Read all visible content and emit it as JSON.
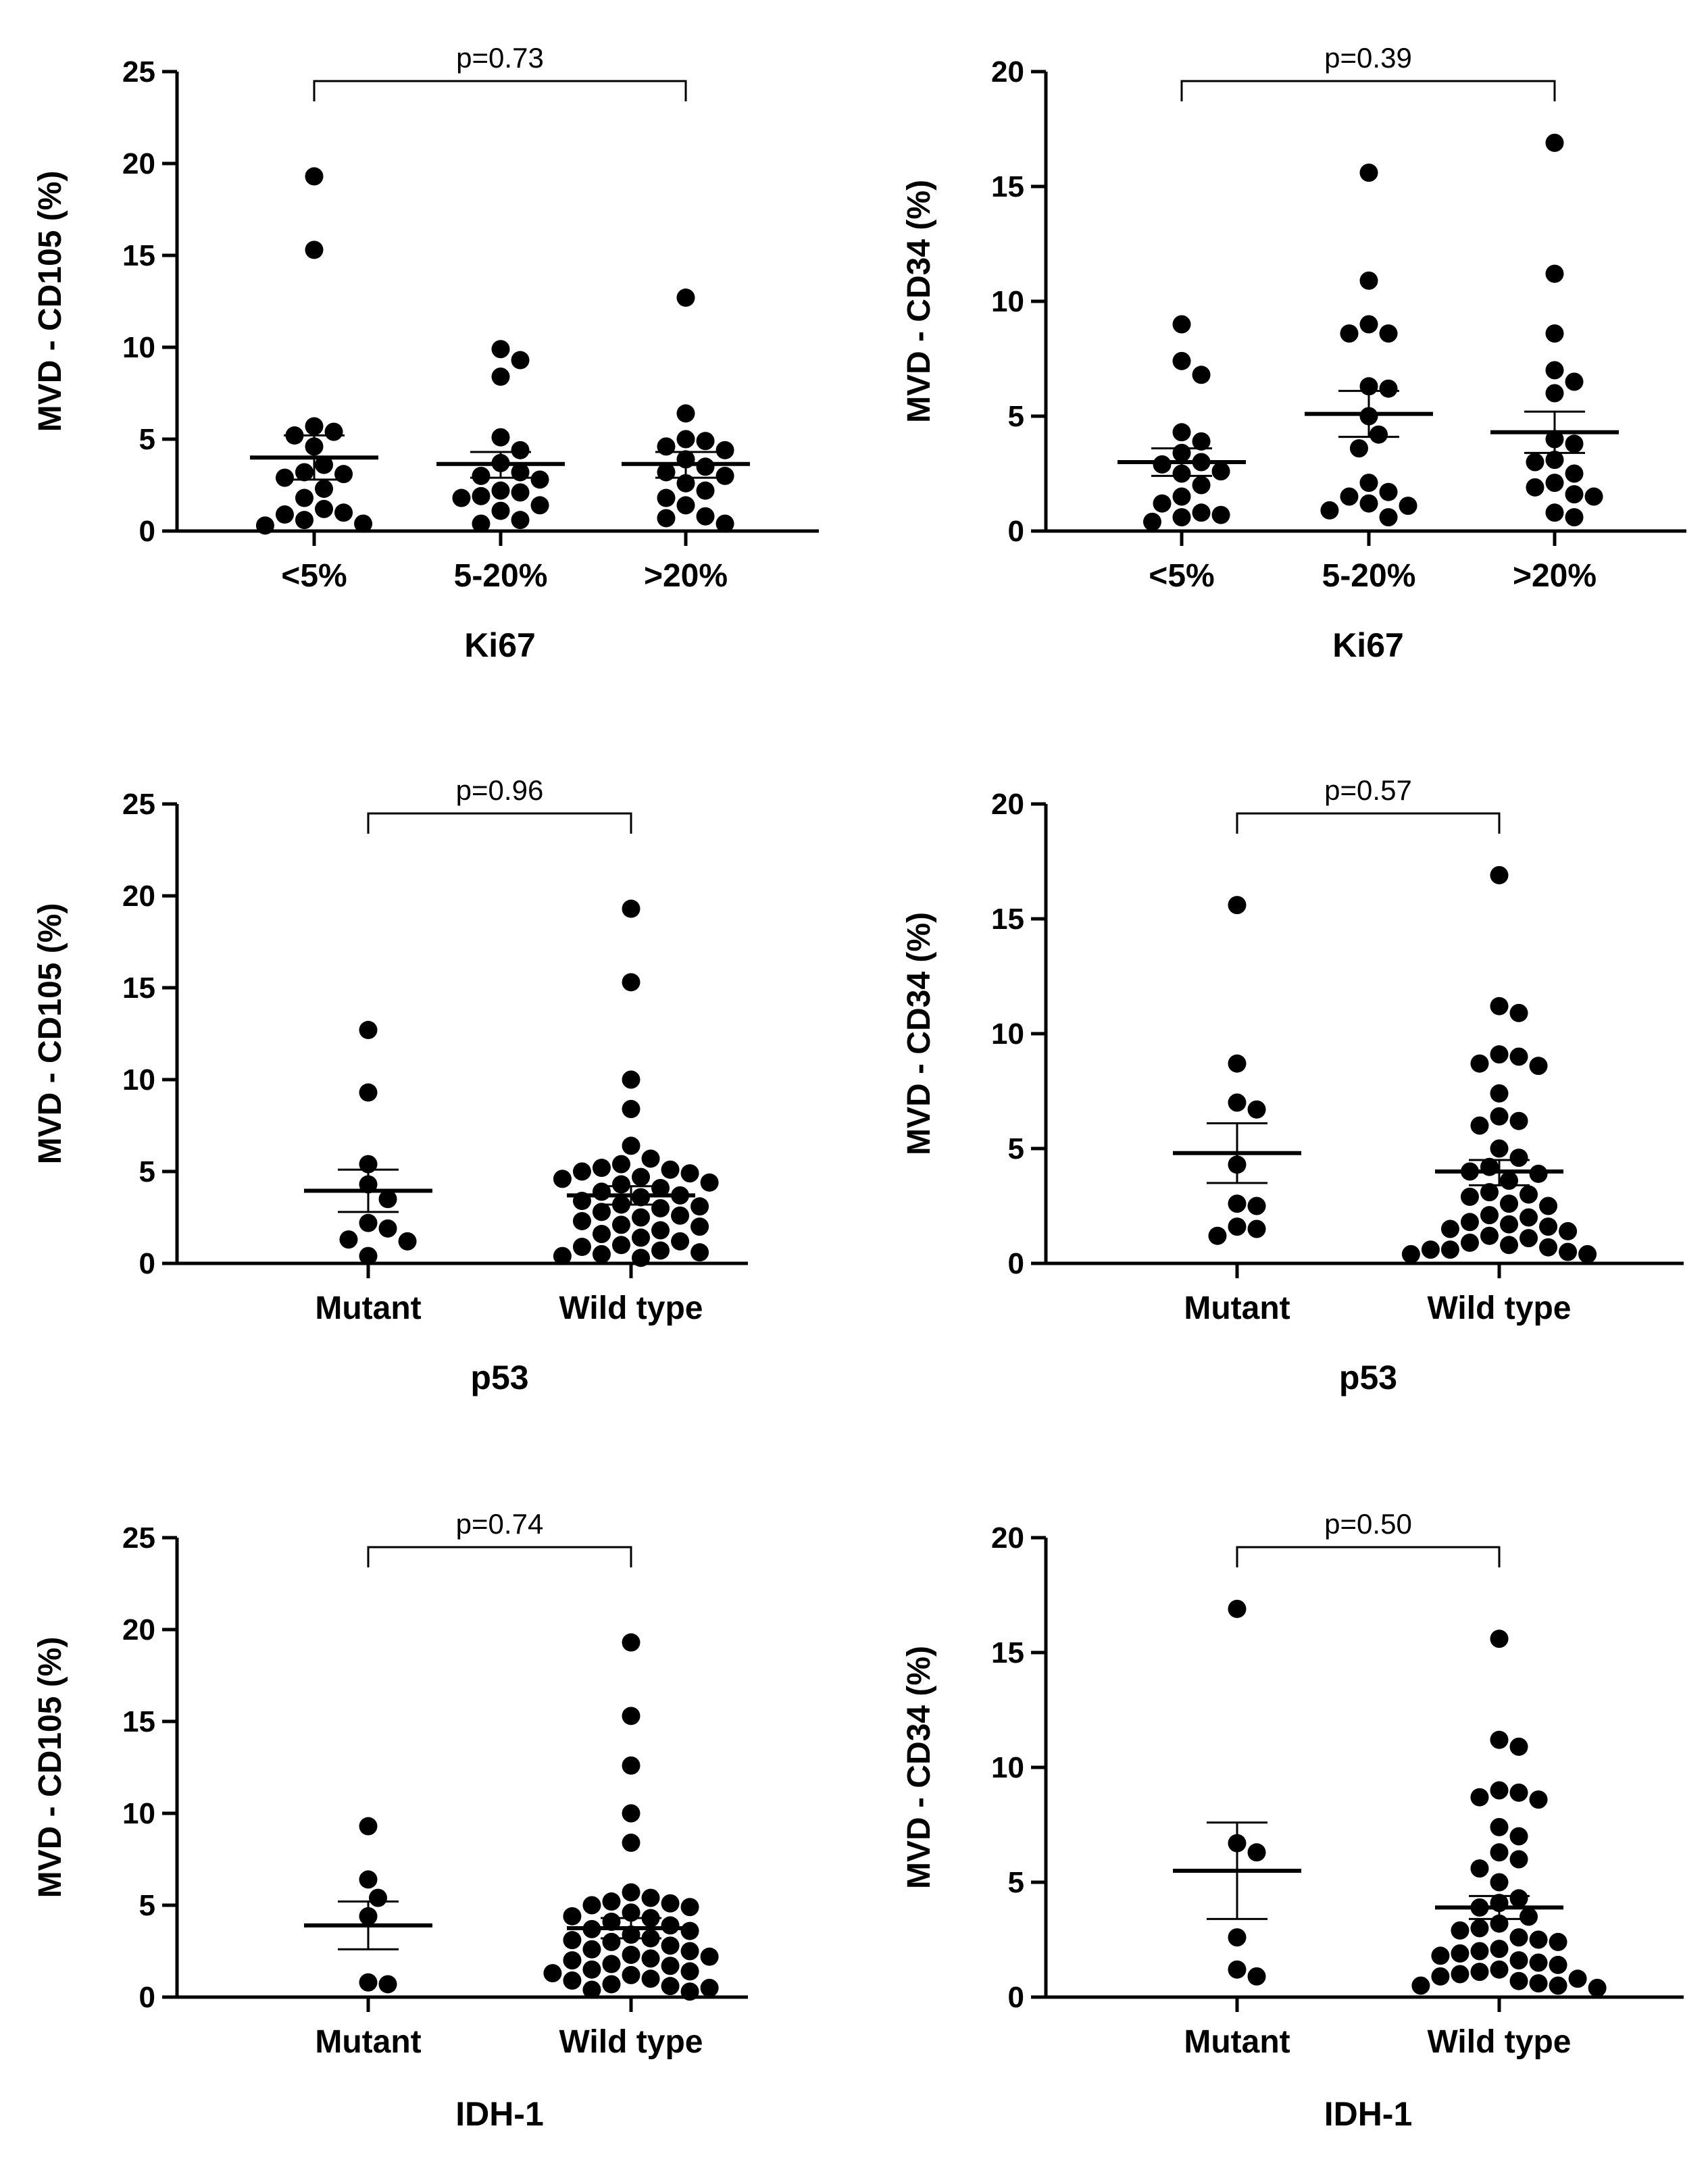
{
  "chart_data": [
    {
      "type": "scatter",
      "ylabel": "MVD - CD105 (%)",
      "xlabel": "Ki67",
      "ylim": [
        0,
        25
      ],
      "yticks": [
        0,
        5,
        10,
        15,
        20,
        25
      ],
      "categories": [
        "<5%",
        "5-20%",
        ">20%"
      ],
      "comparison": {
        "label": "p=0.73",
        "from": 0,
        "to": 2
      },
      "groups": [
        {
          "name": "<5%",
          "mean": 4.0,
          "sem_low": 2.8,
          "sem_high": 5.2,
          "points": [
            19.3,
            15.3,
            5.7,
            5.4,
            5.2,
            4.6,
            3.6,
            3.2,
            3.1,
            2.9,
            2.3,
            1.8,
            1.2,
            1.0,
            0.9,
            0.6,
            0.4,
            0.3
          ]
        },
        {
          "name": "5-20%",
          "mean": 3.65,
          "sem_low": 2.9,
          "sem_high": 4.3,
          "points": [
            9.9,
            9.3,
            8.4,
            5.1,
            4.4,
            3.7,
            3.2,
            3.0,
            2.8,
            2.2,
            2.1,
            1.9,
            1.8,
            1.4,
            1.1,
            0.6,
            0.4
          ]
        },
        {
          "name": ">20%",
          "mean": 3.65,
          "sem_low": 2.9,
          "sem_high": 4.3,
          "points": [
            12.7,
            6.4,
            5.0,
            4.9,
            4.6,
            4.4,
            3.9,
            3.5,
            3.2,
            3.0,
            2.6,
            2.2,
            1.8,
            1.4,
            0.8,
            0.7,
            0.4
          ]
        }
      ]
    },
    {
      "type": "scatter",
      "ylabel": "MVD - CD34 (%)",
      "xlabel": "Ki67",
      "ylim": [
        0,
        20
      ],
      "yticks": [
        0,
        5,
        10,
        15,
        20
      ],
      "categories": [
        "<5%",
        "5-20%",
        ">20%"
      ],
      "comparison": {
        "label": "p=0.39",
        "from": 0,
        "to": 2
      },
      "groups": [
        {
          "name": "<5%",
          "mean": 3.0,
          "sem_low": 2.4,
          "sem_high": 3.6,
          "points": [
            9.0,
            7.4,
            6.8,
            4.3,
            3.9,
            3.4,
            3.0,
            2.9,
            2.6,
            2.5,
            2.0,
            1.5,
            1.2,
            0.8,
            0.7,
            0.6,
            0.4
          ]
        },
        {
          "name": "5-20%",
          "mean": 5.1,
          "sem_low": 4.1,
          "sem_high": 6.1,
          "points": [
            15.6,
            10.9,
            9.0,
            8.6,
            8.6,
            6.3,
            6.2,
            5.0,
            4.2,
            3.6,
            2.1,
            1.7,
            1.5,
            1.2,
            1.1,
            0.9,
            0.6
          ]
        },
        {
          "name": ">20%",
          "mean": 4.3,
          "sem_low": 3.4,
          "sem_high": 5.2,
          "points": [
            16.9,
            11.2,
            8.6,
            7.0,
            6.5,
            6.0,
            4.0,
            3.8,
            3.1,
            3.0,
            2.5,
            2.1,
            1.9,
            1.6,
            1.5,
            0.8,
            0.6
          ]
        }
      ]
    },
    {
      "type": "scatter",
      "ylabel": "MVD - CD105 (%)",
      "xlabel": "p53",
      "ylim": [
        0,
        25
      ],
      "yticks": [
        0,
        5,
        10,
        15,
        20,
        25
      ],
      "categories": [
        "Mutant",
        "Wild type"
      ],
      "comparison": {
        "label": "p=0.96",
        "from": 0,
        "to": 1
      },
      "groups": [
        {
          "name": "Mutant",
          "mean": 3.95,
          "sem_low": 2.8,
          "sem_high": 5.1,
          "points": [
            12.7,
            9.3,
            5.4,
            4.3,
            3.5,
            2.2,
            1.9,
            1.3,
            1.2,
            0.4
          ]
        },
        {
          "name": "Wild type",
          "mean": 3.7,
          "sem_low": 3.2,
          "sem_high": 4.2,
          "points": [
            19.3,
            15.3,
            10.0,
            8.4,
            6.4,
            5.7,
            5.4,
            5.2,
            5.1,
            5.0,
            4.9,
            4.7,
            4.6,
            4.4,
            4.3,
            4.1,
            3.9,
            3.7,
            3.6,
            3.4,
            3.2,
            3.1,
            3.0,
            2.8,
            2.6,
            2.5,
            2.3,
            2.1,
            2.0,
            1.8,
            1.6,
            1.4,
            1.2,
            1.0,
            0.9,
            0.7,
            0.6,
            0.5,
            0.4,
            0.3
          ]
        }
      ]
    },
    {
      "type": "scatter",
      "ylabel": "MVD - CD34 (%)",
      "xlabel": "p53",
      "ylim": [
        0,
        20
      ],
      "yticks": [
        0,
        5,
        10,
        15,
        20
      ],
      "categories": [
        "Mutant",
        "Wild type"
      ],
      "comparison": {
        "label": "p=0.57",
        "from": 0,
        "to": 1
      },
      "groups": [
        {
          "name": "Mutant",
          "mean": 4.8,
          "sem_low": 3.5,
          "sem_high": 6.1,
          "points": [
            15.6,
            8.7,
            7.0,
            6.7,
            4.3,
            2.6,
            2.5,
            1.6,
            1.5,
            1.2
          ]
        },
        {
          "name": "Wild type",
          "mean": 4.0,
          "sem_low": 3.4,
          "sem_high": 4.5,
          "points": [
            16.9,
            11.2,
            10.9,
            9.1,
            9.0,
            8.7,
            8.6,
            7.4,
            6.4,
            6.2,
            6.0,
            5.0,
            4.6,
            4.2,
            4.0,
            3.9,
            3.6,
            3.1,
            3.0,
            2.9,
            2.6,
            2.5,
            2.1,
            2.0,
            1.8,
            1.7,
            1.6,
            1.5,
            1.4,
            1.2,
            1.1,
            0.9,
            0.8,
            0.7,
            0.6,
            0.6,
            0.5,
            0.4,
            0.4
          ]
        }
      ]
    },
    {
      "type": "scatter",
      "ylabel": "MVD - CD105 (%)",
      "xlabel": "IDH-1",
      "ylim": [
        0,
        25
      ],
      "yticks": [
        0,
        5,
        10,
        15,
        20,
        25
      ],
      "categories": [
        "Mutant",
        "Wild type"
      ],
      "comparison": {
        "label": "p=0.74",
        "from": 0,
        "to": 1
      },
      "groups": [
        {
          "name": "Mutant",
          "mean": 3.9,
          "sem_low": 2.6,
          "sem_high": 5.2,
          "points": [
            9.3,
            6.4,
            5.4,
            4.4,
            0.8,
            0.7
          ]
        },
        {
          "name": "Wild type",
          "mean": 3.75,
          "sem_low": 3.2,
          "sem_high": 4.3,
          "points": [
            19.3,
            15.3,
            12.6,
            10.0,
            8.4,
            5.7,
            5.4,
            5.2,
            5.1,
            5.0,
            4.9,
            4.6,
            4.4,
            4.3,
            4.1,
            3.9,
            3.7,
            3.6,
            3.4,
            3.2,
            3.1,
            3.0,
            2.8,
            2.6,
            2.5,
            2.3,
            2.2,
            2.1,
            2.0,
            1.8,
            1.7,
            1.5,
            1.4,
            1.3,
            1.2,
            1.0,
            0.9,
            0.7,
            0.6,
            0.5,
            0.4,
            0.3
          ]
        }
      ]
    },
    {
      "type": "scatter",
      "ylabel": "MVD - CD34 (%)",
      "xlabel": "IDH-1",
      "ylim": [
        0,
        20
      ],
      "yticks": [
        0,
        5,
        10,
        15,
        20
      ],
      "categories": [
        "Mutant",
        "Wild type"
      ],
      "comparison": {
        "label": "p=0.50",
        "from": 0,
        "to": 1
      },
      "groups": [
        {
          "name": "Mutant",
          "mean": 5.5,
          "sem_low": 3.4,
          "sem_high": 7.6,
          "points": [
            16.9,
            6.7,
            6.3,
            2.6,
            1.2,
            0.9
          ]
        },
        {
          "name": "Wild type",
          "mean": 3.9,
          "sem_low": 3.4,
          "sem_high": 4.4,
          "points": [
            15.6,
            11.2,
            10.9,
            9.0,
            8.9,
            8.7,
            8.6,
            7.4,
            7.0,
            6.3,
            6.0,
            5.6,
            5.0,
            4.3,
            4.1,
            3.9,
            3.5,
            3.2,
            3.0,
            2.9,
            2.6,
            2.5,
            2.4,
            2.1,
            2.0,
            1.9,
            1.8,
            1.6,
            1.5,
            1.4,
            1.2,
            1.1,
            1.0,
            0.9,
            0.8,
            0.7,
            0.6,
            0.5,
            0.5,
            0.4
          ]
        }
      ]
    }
  ]
}
